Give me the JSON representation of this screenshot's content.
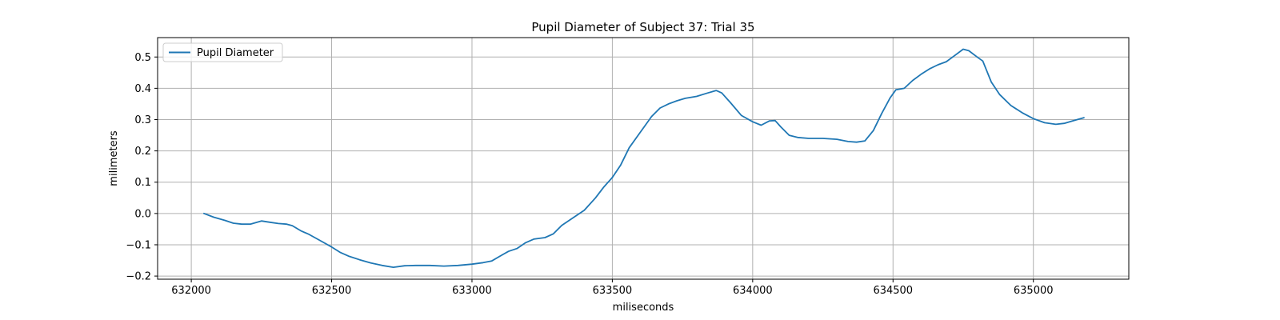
{
  "chart_data": {
    "type": "line",
    "title": "Pupil Diameter of Subject 37: Trial 35",
    "xlabel": "miliseconds",
    "ylabel": "milimeters",
    "xlim": [
      631880,
      635340
    ],
    "ylim": [
      -0.21,
      0.562
    ],
    "xticks": [
      632000,
      632500,
      633000,
      633500,
      634000,
      634500,
      635000
    ],
    "yticks": [
      -0.2,
      -0.1,
      0.0,
      0.1,
      0.2,
      0.3,
      0.4,
      0.5
    ],
    "grid": true,
    "legend_position": "top-left",
    "series": [
      {
        "name": "Pupil Diameter",
        "color": "#1f77b4",
        "x": [
          632045,
          632080,
          632120,
          632150,
          632180,
          632210,
          632250,
          632280,
          632310,
          632340,
          632360,
          632390,
          632420,
          632460,
          632500,
          632530,
          632560,
          632600,
          632640,
          632680,
          632720,
          632760,
          632800,
          632850,
          632900,
          632950,
          633000,
          633040,
          633070,
          633100,
          633130,
          633160,
          633190,
          633220,
          633260,
          633290,
          633320,
          633360,
          633400,
          633440,
          633470,
          633500,
          633530,
          633560,
          633600,
          633640,
          633670,
          633700,
          633730,
          633760,
          633800,
          633840,
          633870,
          633890,
          633920,
          633960,
          634000,
          634030,
          634060,
          634080,
          634100,
          634130,
          634160,
          634200,
          634250,
          634300,
          634340,
          634370,
          634400,
          634430,
          634460,
          634490,
          634510,
          634540,
          634570,
          634600,
          634630,
          634660,
          634690,
          634720,
          634750,
          634770,
          634800,
          634820,
          634850,
          634880,
          634920,
          634960,
          635000,
          635040,
          635080,
          635110,
          635140,
          635180
        ],
        "y": [
          0.0,
          -0.012,
          -0.022,
          -0.031,
          -0.034,
          -0.034,
          -0.024,
          -0.028,
          -0.032,
          -0.034,
          -0.039,
          -0.055,
          -0.067,
          -0.087,
          -0.107,
          -0.124,
          -0.136,
          -0.148,
          -0.158,
          -0.166,
          -0.172,
          -0.167,
          -0.166,
          -0.166,
          -0.168,
          -0.166,
          -0.162,
          -0.157,
          -0.152,
          -0.136,
          -0.121,
          -0.112,
          -0.094,
          -0.082,
          -0.077,
          -0.065,
          -0.038,
          -0.014,
          0.01,
          0.05,
          0.085,
          0.115,
          0.155,
          0.21,
          0.26,
          0.31,
          0.337,
          0.35,
          0.36,
          0.368,
          0.374,
          0.385,
          0.393,
          0.385,
          0.355,
          0.313,
          0.293,
          0.282,
          0.296,
          0.297,
          0.277,
          0.25,
          0.243,
          0.24,
          0.24,
          0.237,
          0.23,
          0.228,
          0.232,
          0.265,
          0.32,
          0.37,
          0.395,
          0.4,
          0.425,
          0.445,
          0.462,
          0.475,
          0.485,
          0.505,
          0.525,
          0.52,
          0.5,
          0.487,
          0.42,
          0.38,
          0.345,
          0.322,
          0.303,
          0.29,
          0.285,
          0.288,
          0.296,
          0.306
        ]
      }
    ]
  }
}
